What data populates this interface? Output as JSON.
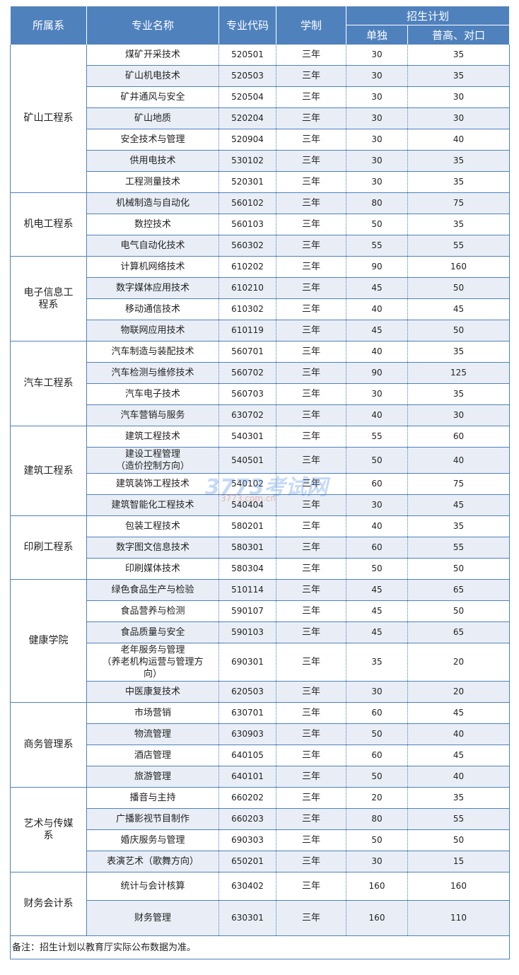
{
  "headers": {
    "dept": "所属系",
    "major": "专业名称",
    "code": "专业代码",
    "duration": "学制",
    "plan": "招生计划",
    "single": "单独",
    "general": "普高、对口"
  },
  "groups": [
    {
      "dept": "矿山工程系",
      "rows": [
        [
          "煤矿开采技术",
          "520501",
          "三年",
          "30",
          "35"
        ],
        [
          "矿山机电技术",
          "520503",
          "三年",
          "30",
          "35"
        ],
        [
          "矿井通风与安全",
          "520504",
          "三年",
          "30",
          "30"
        ],
        [
          "矿山地质",
          "520204",
          "三年",
          "30",
          "30"
        ],
        [
          "安全技术与管理",
          "520904",
          "三年",
          "30",
          "40"
        ],
        [
          "供用电技术",
          "530102",
          "三年",
          "30",
          "35"
        ],
        [
          "工程测量技术",
          "520301",
          "三年",
          "30",
          "35"
        ]
      ]
    },
    {
      "dept": "机电工程系",
      "rows": [
        [
          "机械制造与自动化",
          "560102",
          "三年",
          "80",
          "75"
        ],
        [
          "数控技术",
          "560103",
          "三年",
          "50",
          "35"
        ],
        [
          "电气自动化技术",
          "560302",
          "三年",
          "55",
          "55"
        ]
      ]
    },
    {
      "dept": "电子信息工程系",
      "rows": [
        [
          "计算机网络技术",
          "610202",
          "三年",
          "90",
          "160"
        ],
        [
          "数字媒体应用技术",
          "610210",
          "三年",
          "45",
          "50"
        ],
        [
          "移动通信技术",
          "610302",
          "三年",
          "40",
          "45"
        ],
        [
          "物联网应用技术",
          "610119",
          "三年",
          "45",
          "50"
        ]
      ]
    },
    {
      "dept": "汽车工程系",
      "rows": [
        [
          "汽车制造与装配技术",
          "560701",
          "三年",
          "40",
          "35"
        ],
        [
          "汽车检测与维修技术",
          "560702",
          "三年",
          "90",
          "125"
        ],
        [
          "汽车电子技术",
          "560703",
          "三年",
          "30",
          "35"
        ],
        [
          "汽车营销与服务",
          "630702",
          "三年",
          "40",
          "30"
        ]
      ]
    },
    {
      "dept": "建筑工程系",
      "rows": [
        [
          "建筑工程技术",
          "540301",
          "三年",
          "55",
          "60"
        ],
        [
          "建设工程管理\n（造价控制方向）",
          "540501",
          "三年",
          "50",
          "40"
        ],
        [
          "建筑装饰工程技术",
          "540102",
          "三年",
          "60",
          "75"
        ],
        [
          "建筑智能化工程技术",
          "540404",
          "三年",
          "30",
          "45"
        ]
      ]
    },
    {
      "dept": "印刷工程系",
      "rows": [
        [
          "包装工程技术",
          "580201",
          "三年",
          "40",
          "35"
        ],
        [
          "数字图文信息技术",
          "580301",
          "三年",
          "60",
          "55"
        ],
        [
          "印刷媒体技术",
          "580304",
          "三年",
          "50",
          "50"
        ]
      ]
    },
    {
      "dept": "健康学院",
      "rows": [
        [
          "绿色食品生产与检验",
          "510114",
          "三年",
          "45",
          "65"
        ],
        [
          "食品营养与检测",
          "590107",
          "三年",
          "45",
          "50"
        ],
        [
          "食品质量与安全",
          "590103",
          "三年",
          "45",
          "65"
        ],
        [
          "老年服务与管理\n（养老机构运营与管理方\n向）",
          "690301",
          "三年",
          "35",
          "20"
        ],
        [
          "中医康复技术",
          "620503",
          "三年",
          "30",
          "20"
        ]
      ]
    },
    {
      "dept": "商务管理系",
      "rows": [
        [
          "市场营销",
          "630701",
          "三年",
          "60",
          "45"
        ],
        [
          "物流管理",
          "630903",
          "三年",
          "50",
          "40"
        ],
        [
          "酒店管理",
          "640105",
          "三年",
          "60",
          "45"
        ],
        [
          "旅游管理",
          "640101",
          "三年",
          "50",
          "40"
        ]
      ]
    },
    {
      "dept": "艺术与传媒系",
      "rows": [
        [
          "播音与主持",
          "660202",
          "三年",
          "20",
          "35"
        ],
        [
          "广播影视节目制作",
          "660203",
          "三年",
          "80",
          "55"
        ],
        [
          "婚庆服务与管理",
          "690303",
          "三年",
          "50",
          "50"
        ],
        [
          "表演艺术（歌舞方向）",
          "650201",
          "三年",
          "30",
          "15"
        ]
      ]
    },
    {
      "dept": "财务会计系",
      "rows": [
        [
          "统计与会计核算",
          "630402",
          "三年",
          "160",
          "160"
        ],
        [
          "财务管理",
          "630301",
          "三年",
          "160",
          "110"
        ]
      ]
    }
  ],
  "note": "备注：招生计划以教育厅实际公布数据为准。",
  "watermark": {
    "logo": "3773考试网",
    "url": "3773.com.cn"
  },
  "colors": {
    "header": "#4f81bd",
    "stripe": "#e9eef6",
    "border": "#4f81bd"
  }
}
